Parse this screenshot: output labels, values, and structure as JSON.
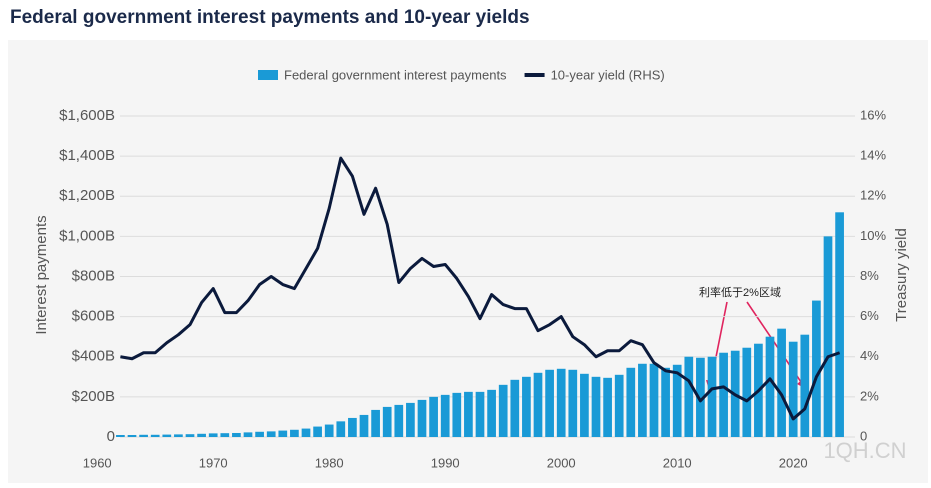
{
  "chart_data": {
    "type": "bar-line",
    "title": "Federal government interest payments and 10-year yields",
    "ylabel": "Interest payments",
    "y2label": "Treasury yield",
    "annotation": "利率低于2%区域",
    "watermark": "1QH.CN",
    "legend": "top",
    "grid": true,
    "x": [
      1962,
      1963,
      1964,
      1965,
      1966,
      1967,
      1968,
      1969,
      1970,
      1971,
      1972,
      1973,
      1974,
      1975,
      1976,
      1977,
      1978,
      1979,
      1980,
      1981,
      1982,
      1983,
      1984,
      1985,
      1986,
      1987,
      1988,
      1989,
      1990,
      1991,
      1992,
      1993,
      1994,
      1995,
      1996,
      1997,
      1998,
      1999,
      2000,
      2001,
      2002,
      2003,
      2004,
      2005,
      2006,
      2007,
      2008,
      2009,
      2010,
      2011,
      2012,
      2013,
      2014,
      2015,
      2016,
      2017,
      2018,
      2019,
      2020,
      2021,
      2022,
      2023,
      2024
    ],
    "xlim": [
      1958,
      2025.5
    ],
    "xticks": [
      1960,
      1970,
      1980,
      1990,
      2000,
      2010,
      2020
    ],
    "ylim": [
      0,
      1600
    ],
    "yticks": [
      0,
      {
        "value": 200,
        "label": "$200B"
      },
      {
        "value": 400,
        "label": "$400B"
      },
      {
        "value": 600,
        "label": "$600B"
      },
      {
        "value": 800,
        "label": "$800B"
      },
      {
        "value": 1000,
        "label": "$1,000B"
      },
      {
        "value": 1200,
        "label": "$1,200B"
      },
      {
        "value": 1400,
        "label": "$1,400B"
      },
      {
        "value": 1600,
        "label": "$1,600B"
      }
    ],
    "y2lim": [
      0,
      16
    ],
    "y2ticks": [
      0,
      {
        "value": 2,
        "label": "2%"
      },
      {
        "value": 4,
        "label": "4%"
      },
      {
        "value": 6,
        "label": "6%"
      },
      {
        "value": 8,
        "label": "8%"
      },
      {
        "value": 10,
        "label": "10%"
      },
      {
        "value": 12,
        "label": "12%"
      },
      {
        "value": 14,
        "label": "14%"
      },
      {
        "value": 16,
        "label": "16%"
      }
    ],
    "series": [
      {
        "name": "Federal government interest payments",
        "color": "#1a9ad6",
        "type": "bar",
        "values": [
          10,
          10,
          11,
          11,
          12,
          13,
          14,
          16,
          18,
          19,
          20,
          23,
          26,
          28,
          32,
          36,
          42,
          52,
          62,
          78,
          95,
          110,
          135,
          150,
          160,
          170,
          185,
          200,
          210,
          220,
          225,
          225,
          235,
          260,
          285,
          300,
          320,
          335,
          340,
          335,
          315,
          300,
          295,
          310,
          345,
          365,
          365,
          345,
          360,
          400,
          395,
          400,
          420,
          430,
          445,
          465,
          500,
          540,
          475,
          510,
          680,
          1000,
          1120
        ]
      },
      {
        "name": "10-year yield (RHS)",
        "color": "#0b1a3c",
        "type": "line",
        "axis": "y2",
        "values": [
          4.0,
          3.9,
          4.2,
          4.2,
          4.7,
          5.1,
          5.6,
          6.7,
          7.4,
          6.2,
          6.2,
          6.8,
          7.6,
          8.0,
          7.6,
          7.4,
          8.4,
          9.4,
          11.4,
          13.9,
          13.0,
          11.1,
          12.4,
          10.6,
          7.7,
          8.4,
          8.9,
          8.5,
          8.6,
          7.9,
          7.0,
          5.9,
          7.1,
          6.6,
          6.4,
          6.4,
          5.3,
          5.6,
          6.0,
          5.0,
          4.6,
          4.0,
          4.3,
          4.3,
          4.8,
          4.6,
          3.7,
          3.3,
          3.2,
          2.8,
          1.8,
          2.4,
          2.5,
          2.1,
          1.8,
          2.3,
          2.9,
          2.1,
          0.9,
          1.4,
          3.0,
          4.0,
          4.2
        ]
      }
    ]
  }
}
